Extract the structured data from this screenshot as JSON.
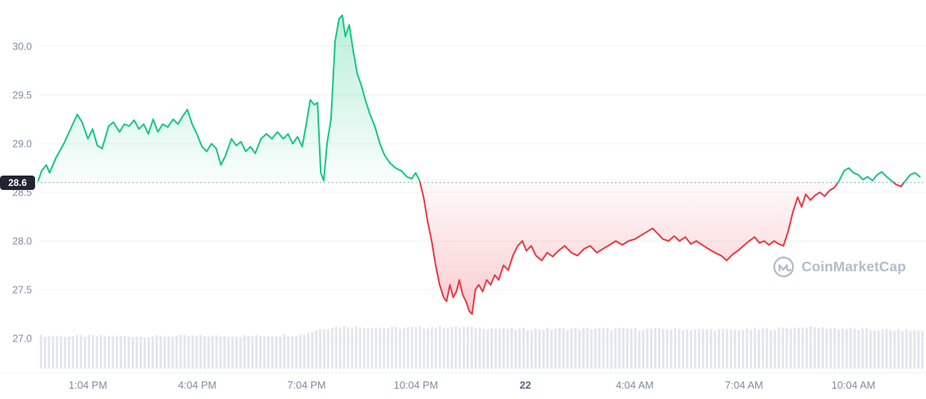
{
  "watermark": {
    "text": "CoinMarketCap"
  },
  "colors": {
    "green": "#16c784",
    "red": "#ea3943",
    "axis_text": "#808a9d",
    "date_text": "#58667e",
    "grid": "#eff2f5",
    "ref_line": "#9aa3b3",
    "badge_bg": "#222531",
    "badge_text": "#ffffff",
    "volume_bar": "#e4e7ee",
    "watermark": "#b3bccb"
  },
  "chart_data": {
    "type": "line",
    "title": "",
    "ref_price": 28.6,
    "ref_price_label": "28.6",
    "x_axis": {
      "unit": "hours from chart start",
      "domain": [
        0,
        24.35
      ]
    },
    "ylim": [
      27.0,
      30.0
    ],
    "grid": "horizontal-only",
    "y_ticks": [
      {
        "value": 30.0,
        "label": "30.0"
      },
      {
        "value": 29.5,
        "label": "29.5"
      },
      {
        "value": 29.0,
        "label": "29.0"
      },
      {
        "value": 28.5,
        "label": "28.5"
      },
      {
        "value": 28.0,
        "label": "28.0"
      },
      {
        "value": 27.5,
        "label": "27.5"
      },
      {
        "value": 27.0,
        "label": "27.0"
      }
    ],
    "x_ticks": [
      {
        "t": 1.36,
        "label": "1:04 PM"
      },
      {
        "t": 4.36,
        "label": "4:04 PM"
      },
      {
        "t": 7.36,
        "label": "7:04 PM"
      },
      {
        "t": 10.36,
        "label": "10:04 PM"
      },
      {
        "t": 13.36,
        "label": "22",
        "emphasis": true
      },
      {
        "t": 16.36,
        "label": "4:04 AM"
      },
      {
        "t": 19.36,
        "label": "7:04 AM"
      },
      {
        "t": 22.36,
        "label": "10:04 AM"
      }
    ],
    "series": [
      {
        "name": "price",
        "points": [
          [
            0,
            28.62
          ],
          [
            0.09,
            28.72
          ],
          [
            0.22,
            28.78
          ],
          [
            0.31,
            28.7
          ],
          [
            0.48,
            28.85
          ],
          [
            0.7,
            29.0
          ],
          [
            0.92,
            29.18
          ],
          [
            1.07,
            29.3
          ],
          [
            1.2,
            29.22
          ],
          [
            1.36,
            29.05
          ],
          [
            1.49,
            29.15
          ],
          [
            1.62,
            28.98
          ],
          [
            1.75,
            28.95
          ],
          [
            1.93,
            29.18
          ],
          [
            2.06,
            29.22
          ],
          [
            2.23,
            29.12
          ],
          [
            2.36,
            29.2
          ],
          [
            2.49,
            29.18
          ],
          [
            2.63,
            29.24
          ],
          [
            2.76,
            29.15
          ],
          [
            2.89,
            29.2
          ],
          [
            3.02,
            29.1
          ],
          [
            3.15,
            29.25
          ],
          [
            3.28,
            29.12
          ],
          [
            3.41,
            29.2
          ],
          [
            3.55,
            29.17
          ],
          [
            3.7,
            29.25
          ],
          [
            3.83,
            29.2
          ],
          [
            3.96,
            29.28
          ],
          [
            4.09,
            29.35
          ],
          [
            4.22,
            29.2
          ],
          [
            4.35,
            29.1
          ],
          [
            4.49,
            28.97
          ],
          [
            4.62,
            28.92
          ],
          [
            4.75,
            29.0
          ],
          [
            4.88,
            28.95
          ],
          [
            5.01,
            28.78
          ],
          [
            5.14,
            28.88
          ],
          [
            5.3,
            29.05
          ],
          [
            5.43,
            28.98
          ],
          [
            5.56,
            29.02
          ],
          [
            5.69,
            28.92
          ],
          [
            5.82,
            28.97
          ],
          [
            5.95,
            28.9
          ],
          [
            6.11,
            29.05
          ],
          [
            6.26,
            29.1
          ],
          [
            6.41,
            29.05
          ],
          [
            6.56,
            29.12
          ],
          [
            6.72,
            29.05
          ],
          [
            6.85,
            29.1
          ],
          [
            6.98,
            29.0
          ],
          [
            7.11,
            29.07
          ],
          [
            7.24,
            28.97
          ],
          [
            7.35,
            29.2
          ],
          [
            7.46,
            29.45
          ],
          [
            7.57,
            29.4
          ],
          [
            7.66,
            29.42
          ],
          [
            7.75,
            28.7
          ],
          [
            7.83,
            28.62
          ],
          [
            7.92,
            29.0
          ],
          [
            8.03,
            29.25
          ],
          [
            8.14,
            30.05
          ],
          [
            8.25,
            30.28
          ],
          [
            8.34,
            30.32
          ],
          [
            8.42,
            30.1
          ],
          [
            8.53,
            30.22
          ],
          [
            8.64,
            29.95
          ],
          [
            8.75,
            29.72
          ],
          [
            8.86,
            29.6
          ],
          [
            8.97,
            29.45
          ],
          [
            9.1,
            29.3
          ],
          [
            9.23,
            29.18
          ],
          [
            9.37,
            29.0
          ],
          [
            9.5,
            28.88
          ],
          [
            9.65,
            28.8
          ],
          [
            9.8,
            28.75
          ],
          [
            9.96,
            28.72
          ],
          [
            10.11,
            28.66
          ],
          [
            10.24,
            28.64
          ],
          [
            10.35,
            28.7
          ],
          [
            10.46,
            28.62
          ],
          [
            10.57,
            28.45
          ],
          [
            10.68,
            28.2
          ],
          [
            10.79,
            28.0
          ],
          [
            10.9,
            27.75
          ],
          [
            11.01,
            27.55
          ],
          [
            11.12,
            27.42
          ],
          [
            11.2,
            27.38
          ],
          [
            11.29,
            27.55
          ],
          [
            11.38,
            27.42
          ],
          [
            11.47,
            27.48
          ],
          [
            11.55,
            27.6
          ],
          [
            11.64,
            27.45
          ],
          [
            11.73,
            27.38
          ],
          [
            11.82,
            27.28
          ],
          [
            11.9,
            27.25
          ],
          [
            11.99,
            27.5
          ],
          [
            12.08,
            27.55
          ],
          [
            12.19,
            27.48
          ],
          [
            12.3,
            27.6
          ],
          [
            12.41,
            27.55
          ],
          [
            12.52,
            27.65
          ],
          [
            12.63,
            27.6
          ],
          [
            12.76,
            27.75
          ],
          [
            12.89,
            27.7
          ],
          [
            13.02,
            27.85
          ],
          [
            13.15,
            27.95
          ],
          [
            13.28,
            28.0
          ],
          [
            13.39,
            27.9
          ],
          [
            13.52,
            27.95
          ],
          [
            13.65,
            27.85
          ],
          [
            13.81,
            27.8
          ],
          [
            13.96,
            27.88
          ],
          [
            14.11,
            27.84
          ],
          [
            14.27,
            27.9
          ],
          [
            14.44,
            27.95
          ],
          [
            14.62,
            27.88
          ],
          [
            14.79,
            27.85
          ],
          [
            14.97,
            27.92
          ],
          [
            15.14,
            27.95
          ],
          [
            15.32,
            27.88
          ],
          [
            15.49,
            27.92
          ],
          [
            15.67,
            27.96
          ],
          [
            15.84,
            28.0
          ],
          [
            16.02,
            27.96
          ],
          [
            16.19,
            28.0
          ],
          [
            16.37,
            28.02
          ],
          [
            16.54,
            28.06
          ],
          [
            16.72,
            28.1
          ],
          [
            16.85,
            28.13
          ],
          [
            16.98,
            28.08
          ],
          [
            17.13,
            28.02
          ],
          [
            17.29,
            28.0
          ],
          [
            17.44,
            28.05
          ],
          [
            17.59,
            28.0
          ],
          [
            17.75,
            28.04
          ],
          [
            17.9,
            27.97
          ],
          [
            18.05,
            28.0
          ],
          [
            18.21,
            27.96
          ],
          [
            18.38,
            27.92
          ],
          [
            18.56,
            27.88
          ],
          [
            18.73,
            27.85
          ],
          [
            18.88,
            27.8
          ],
          [
            19.04,
            27.86
          ],
          [
            19.19,
            27.9
          ],
          [
            19.34,
            27.95
          ],
          [
            19.5,
            28.0
          ],
          [
            19.65,
            28.04
          ],
          [
            19.78,
            27.98
          ],
          [
            19.91,
            28.0
          ],
          [
            20.04,
            27.96
          ],
          [
            20.18,
            28.0
          ],
          [
            20.31,
            27.97
          ],
          [
            20.44,
            27.95
          ],
          [
            20.57,
            28.1
          ],
          [
            20.7,
            28.3
          ],
          [
            20.83,
            28.45
          ],
          [
            20.94,
            28.35
          ],
          [
            21.05,
            28.48
          ],
          [
            21.18,
            28.42
          ],
          [
            21.31,
            28.47
          ],
          [
            21.44,
            28.5
          ],
          [
            21.57,
            28.46
          ],
          [
            21.71,
            28.52
          ],
          [
            21.84,
            28.55
          ],
          [
            21.97,
            28.62
          ],
          [
            22.1,
            28.72
          ],
          [
            22.23,
            28.75
          ],
          [
            22.36,
            28.7
          ],
          [
            22.49,
            28.68
          ],
          [
            22.62,
            28.63
          ],
          [
            22.75,
            28.66
          ],
          [
            22.88,
            28.62
          ],
          [
            23.01,
            28.68
          ],
          [
            23.14,
            28.71
          ],
          [
            23.27,
            28.66
          ],
          [
            23.4,
            28.62
          ],
          [
            23.53,
            28.58
          ],
          [
            23.66,
            28.56
          ],
          [
            23.79,
            28.62
          ],
          [
            23.92,
            28.68
          ],
          [
            24.05,
            28.7
          ],
          [
            24.18,
            28.66
          ]
        ]
      }
    ],
    "volume_profile": [
      [
        0,
        0.76
      ],
      [
        3,
        0.75
      ],
      [
        6,
        0.76
      ],
      [
        7.2,
        0.78
      ],
      [
        7.6,
        0.9
      ],
      [
        8.1,
        0.98
      ],
      [
        9,
        0.96
      ],
      [
        10,
        0.94
      ],
      [
        11,
        0.97
      ],
      [
        12,
        0.95
      ],
      [
        13,
        0.92
      ],
      [
        15,
        0.93
      ],
      [
        17,
        0.92
      ],
      [
        19,
        0.9
      ],
      [
        20,
        0.92
      ],
      [
        21,
        0.96
      ],
      [
        22,
        0.93
      ],
      [
        23,
        0.9
      ],
      [
        24.35,
        0.88
      ]
    ]
  }
}
